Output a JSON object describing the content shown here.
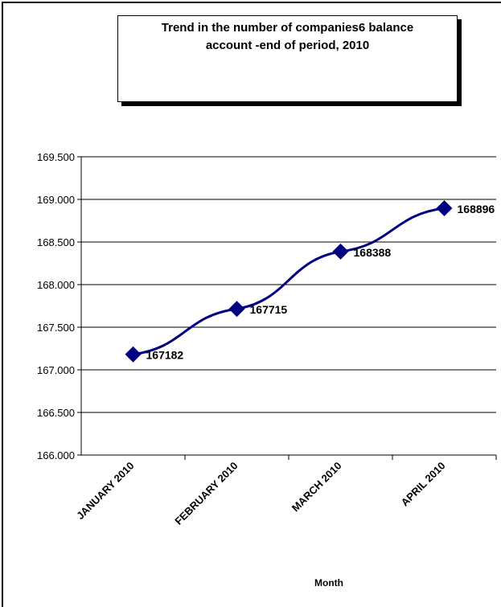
{
  "chart_data": {
    "type": "line",
    "title": "Trend in the number of companies6 balance\naccount -end of period, 2010",
    "xlabel": "Month",
    "ylabel": "",
    "categories": [
      "JANUARY 2010",
      "FEBRUARY 2010",
      "MARCH 2010",
      "APRIL 2010"
    ],
    "series": [
      {
        "values": [
          167182,
          167715,
          168388,
          168896
        ]
      }
    ],
    "data_labels": [
      "167182",
      "167715",
      "168388",
      "168896"
    ],
    "ylim": [
      166000,
      169500
    ],
    "yticks": [
      166000,
      166500,
      167000,
      167500,
      168000,
      168500,
      169000,
      169500
    ],
    "ytick_labels": [
      "166.000",
      "166.500",
      "167.000",
      "167.500",
      "168.000",
      "168.500",
      "169.000",
      "169.500"
    ],
    "grid": true,
    "legend": "none",
    "colors": {
      "series": "#000080",
      "grid": "#000000",
      "axis": "#000000"
    }
  }
}
